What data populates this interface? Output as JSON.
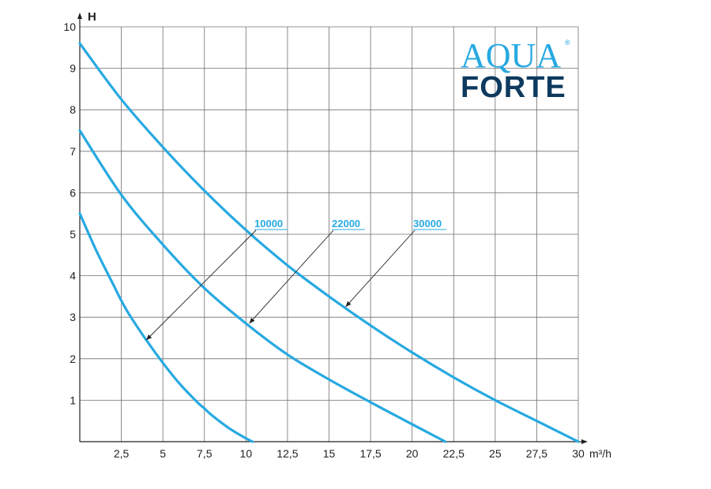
{
  "chart_data": {
    "type": "line",
    "title": "",
    "ylabel": "H",
    "xlabel": "m³/h",
    "xlim": [
      0,
      30
    ],
    "ylim": [
      0,
      10
    ],
    "grid": true,
    "xticks": [
      2.5,
      5,
      7.5,
      10,
      12.5,
      15,
      17.5,
      20,
      22.5,
      25,
      27.5,
      30
    ],
    "xtick_labels": [
      "2,5",
      "5",
      "7,5",
      "10",
      "12,5",
      "15",
      "17,5",
      "20",
      "22,5",
      "25",
      "27,5",
      "30"
    ],
    "yticks": [
      1,
      2,
      3,
      4,
      5,
      6,
      7,
      8,
      9,
      10
    ],
    "ytick_labels": [
      "1",
      "2",
      "3",
      "4",
      "5",
      "6",
      "7",
      "8",
      "9",
      "10"
    ],
    "series": [
      {
        "name": "10000",
        "color": "#27a9e1",
        "x": [
          0,
          1,
          2,
          2.5,
          3,
          4,
          5,
          6,
          7,
          7.5,
          8,
          9,
          10,
          10.4
        ],
        "y": [
          5.5,
          4.6,
          3.8,
          3.4,
          3.05,
          2.45,
          1.9,
          1.4,
          0.98,
          0.8,
          0.62,
          0.32,
          0.08,
          0.0
        ]
      },
      {
        "name": "22000",
        "color": "#27a9e1",
        "x": [
          0,
          2.5,
          5,
          7.5,
          10,
          12.5,
          15,
          17.5,
          20,
          22
        ],
        "y": [
          7.5,
          5.95,
          4.75,
          3.7,
          2.85,
          2.1,
          1.5,
          0.95,
          0.42,
          0.0
        ]
      },
      {
        "name": "30000",
        "color": "#27a9e1",
        "x": [
          0,
          2.5,
          5,
          7.5,
          10,
          12.5,
          15,
          17.5,
          20,
          22.5,
          25,
          27.5,
          30
        ],
        "y": [
          9.6,
          8.25,
          7.1,
          6.05,
          5.1,
          4.25,
          3.5,
          2.8,
          2.15,
          1.55,
          1.0,
          0.5,
          0.0
        ]
      }
    ],
    "annotations": [
      {
        "series": "10000",
        "text": "10000",
        "arrow_to": [
          4,
          2.45
        ]
      },
      {
        "series": "22000",
        "text": "22000",
        "arrow_to": [
          10.2,
          2.85
        ]
      },
      {
        "series": "30000",
        "text": "30000",
        "arrow_to": [
          16,
          3.25
        ]
      }
    ]
  },
  "logo": {
    "line1": "AQUA",
    "line2": "FORTE",
    "registered": "®",
    "color_top": "#27a9e1",
    "color_bottom": "#0d3a5e"
  }
}
